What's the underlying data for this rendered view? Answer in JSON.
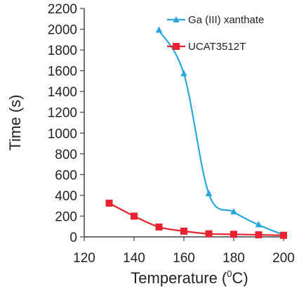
{
  "chart_data": {
    "type": "line",
    "title": "",
    "xlabel": "Temperature (",
    "xlabel_sup": "0",
    "xlabel_suffix": "C)",
    "ylabel": "Time (s)",
    "xlim": [
      120,
      200
    ],
    "ylim": [
      0,
      2200
    ],
    "xticks": [
      120,
      140,
      160,
      180,
      200
    ],
    "yticks": [
      0,
      200,
      400,
      600,
      800,
      1000,
      1200,
      1400,
      1600,
      1800,
      2000,
      2200
    ],
    "grid": false,
    "legend_position": "top-right",
    "series": [
      {
        "name": "Ga (III) xanthate",
        "marker": "triangle",
        "color": "#29a8e0",
        "x": [
          150,
          160,
          170,
          180,
          190,
          200
        ],
        "y": [
          1990,
          1570,
          415,
          240,
          115,
          20
        ]
      },
      {
        "name": "UCAT3512T",
        "marker": "square",
        "color": "#e8232f",
        "x": [
          130,
          140,
          150,
          160,
          170,
          180,
          190,
          200
        ],
        "y": [
          325,
          200,
          95,
          55,
          30,
          25,
          20,
          15
        ]
      }
    ]
  }
}
